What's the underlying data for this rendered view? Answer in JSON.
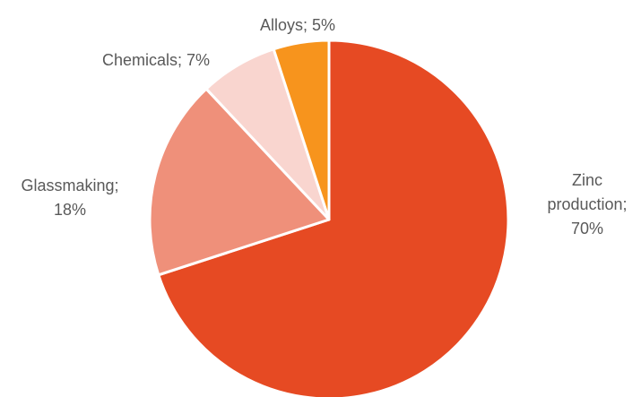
{
  "chart_data": {
    "type": "pie",
    "title": "",
    "legend": "none",
    "categories": [
      "Zinc production",
      "Glassmaking",
      "Chemicals",
      "Alloys"
    ],
    "values": [
      70,
      18,
      7,
      5
    ],
    "colors": [
      "#E64A23",
      "#EF907A",
      "#F9D5CF",
      "#F7941D"
    ],
    "start_angle_deg": 0,
    "direction": "clockwise",
    "data_labels": [
      {
        "lines": [
          "Zinc",
          "production;",
          "70%"
        ]
      },
      {
        "lines": [
          "Glassmaking;",
          "18%"
        ]
      },
      {
        "lines": [
          "Chemicals; 7%"
        ]
      },
      {
        "lines": [
          "Alloys; 5%"
        ]
      }
    ]
  }
}
